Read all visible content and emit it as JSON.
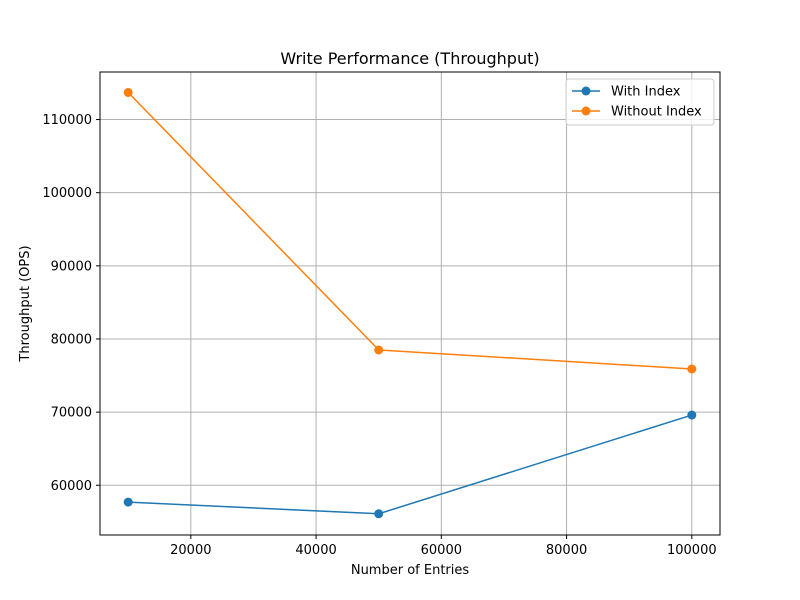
{
  "chart_data": {
    "type": "line",
    "title": "Write Performance (Throughput)",
    "xlabel": "Number of Entries",
    "ylabel": "Throughput (OPS)",
    "x": [
      10000,
      50000,
      100000
    ],
    "xlim": [
      5500,
      104500
    ],
    "ylim": [
      53200,
      116500
    ],
    "xticks": [
      20000,
      40000,
      60000,
      80000,
      100000
    ],
    "yticks": [
      60000,
      70000,
      80000,
      90000,
      100000,
      110000
    ],
    "grid": true,
    "legend_position": "top-right",
    "series": [
      {
        "name": "With Index",
        "color": "#1f77b4",
        "marker": "circle",
        "values": [
          57700,
          56100,
          69600
        ]
      },
      {
        "name": "Without Index",
        "color": "#ff7f0e",
        "marker": "circle",
        "values": [
          113700,
          78500,
          75900
        ]
      }
    ]
  }
}
